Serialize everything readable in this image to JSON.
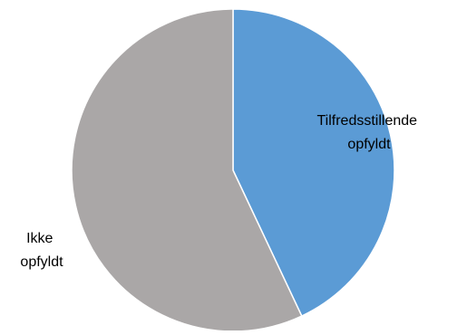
{
  "chart_data": {
    "type": "pie",
    "title": "",
    "slices": [
      {
        "label_lines": [
          "Tilfredsstillende",
          "opfyldt"
        ],
        "value": 43,
        "color": "#5b9bd5"
      },
      {
        "label_lines": [
          "Ikke",
          "opfyldt"
        ],
        "value": 57,
        "color": "#aaa7a7"
      }
    ],
    "start_angle_deg": 0,
    "direction": "clockwise",
    "legend": "none",
    "slice_border_color": "#ffffff"
  }
}
